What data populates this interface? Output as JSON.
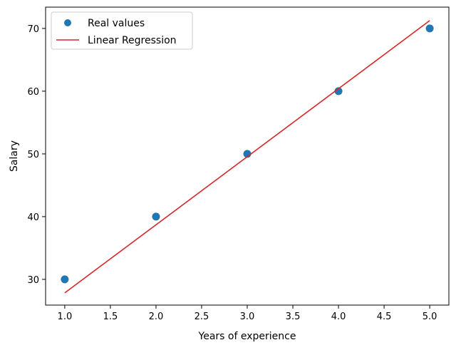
{
  "chart_data": {
    "type": "scatter",
    "title": "",
    "xlabel": "Years of experience",
    "ylabel": "Salary",
    "xlim": [
      0.79,
      5.21
    ],
    "ylim": [
      25.9,
      73.4
    ],
    "xticks": [
      "1.0",
      "1.5",
      "2.0",
      "2.5",
      "3.0",
      "3.5",
      "4.0",
      "4.5",
      "5.0"
    ],
    "yticks": [
      "30",
      "40",
      "50",
      "60",
      "70"
    ],
    "grid": false,
    "legend_position": "top-left",
    "series": [
      {
        "name": "Real values",
        "kind": "scatter",
        "color": "#1f77b4",
        "x": [
          1,
          2,
          3,
          4,
          5
        ],
        "y": [
          30,
          40,
          50,
          60,
          70
        ]
      },
      {
        "name": "Linear Regression",
        "kind": "line",
        "color": "#d62728",
        "x": [
          1,
          5
        ],
        "y": [
          27.85,
          71.25
        ]
      }
    ]
  }
}
